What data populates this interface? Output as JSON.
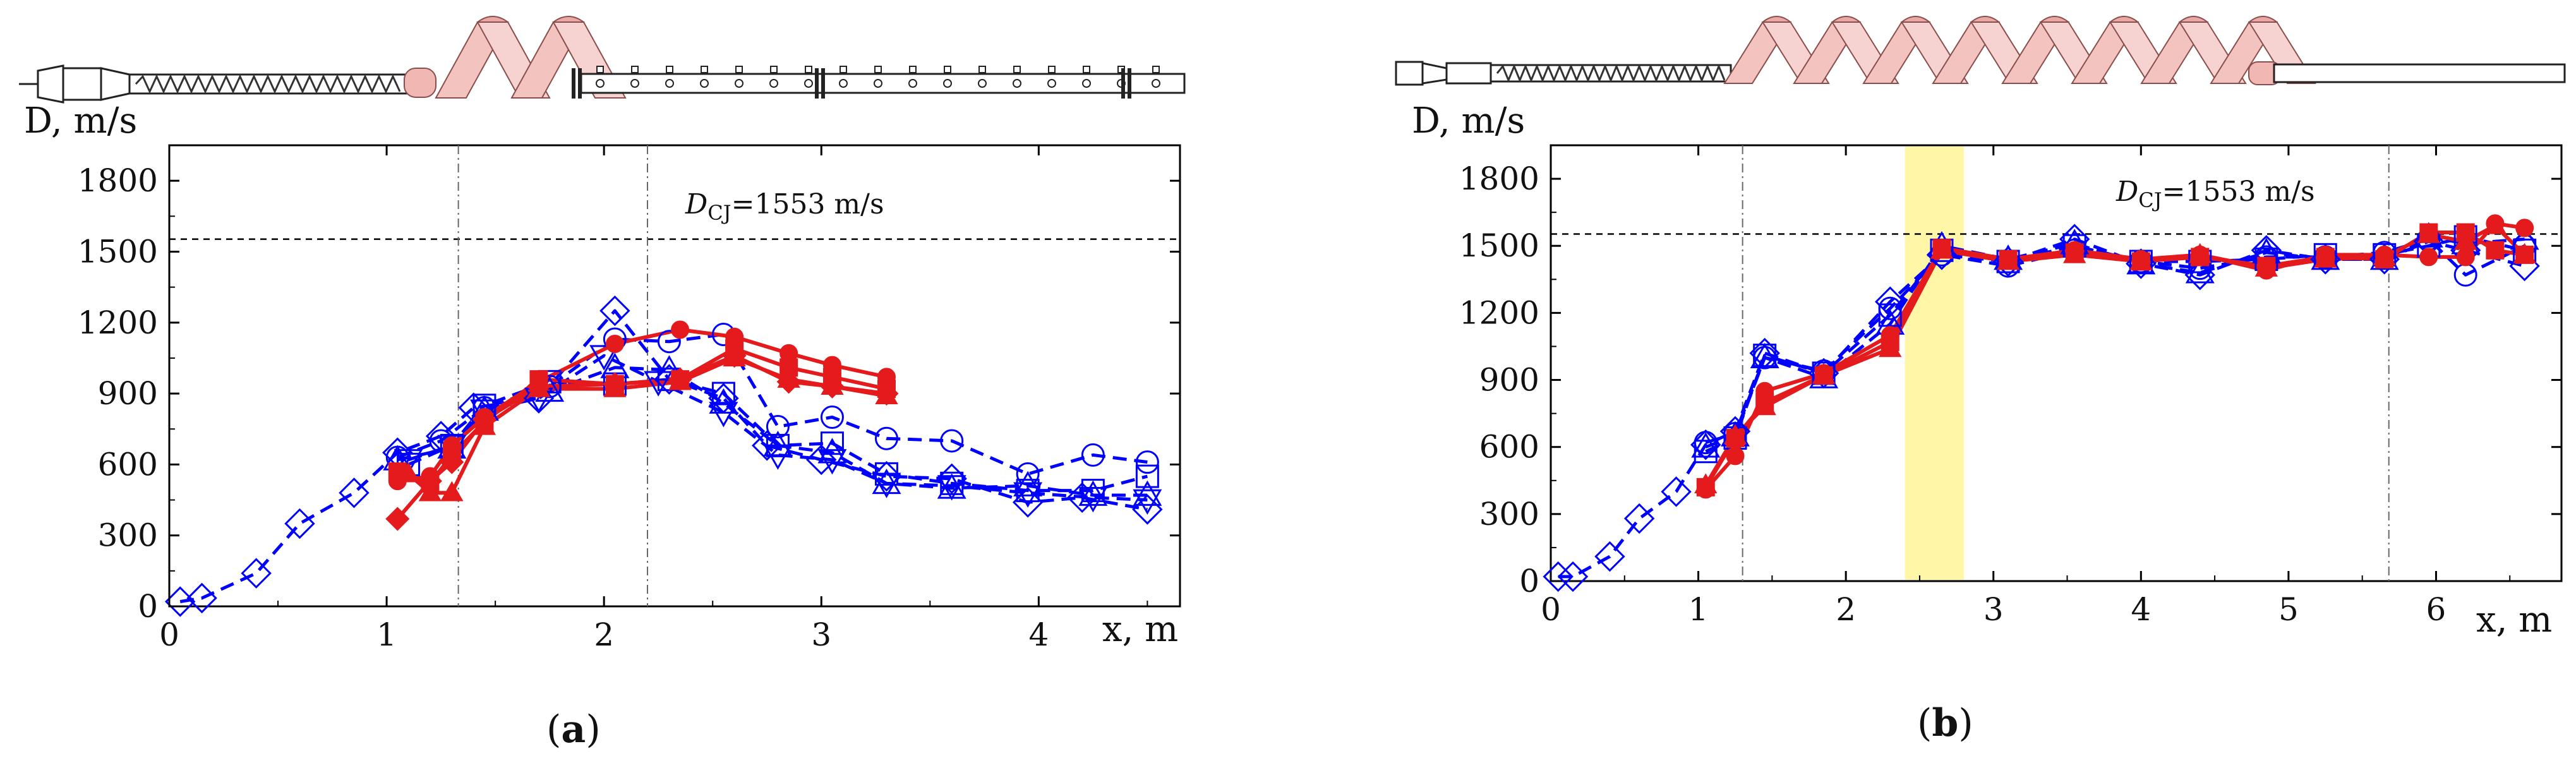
{
  "chart_data": [
    {
      "type": "line",
      "panel_label": "a",
      "ylabel": "D, m/s",
      "xlabel": "x, m",
      "xlim": [
        0,
        4.65
      ],
      "ylim": [
        0,
        1950
      ],
      "yticks": [
        0,
        300,
        600,
        900,
        1200,
        1500,
        1800
      ],
      "xticks": [
        0,
        1,
        2,
        3,
        4
      ],
      "reference_line": {
        "y": 1553,
        "label_main": "D",
        "label_sub": "CJ",
        "label_rest": "=1553 m/s"
      },
      "vertical_lines": [
        1.33,
        2.2
      ],
      "series": [
        {
          "color": "#0000ff",
          "dash": "dashed",
          "marker": "diamond",
          "x": [
            0.05,
            0.15,
            0.4,
            0.6,
            0.85,
            1.05,
            1.25,
            1.4,
            1.7,
            2.05,
            2.3,
            2.55,
            2.75,
            3.0,
            3.3,
            3.6,
            3.95,
            4.2,
            4.5
          ],
          "y": [
            20,
            35,
            140,
            350,
            480,
            650,
            720,
            840,
            880,
            1250,
            960,
            880,
            680,
            620,
            550,
            540,
            440,
            460,
            410
          ]
        },
        {
          "color": "#0000ff",
          "dash": "dashed",
          "marker": "circle",
          "x": [
            1.05,
            1.25,
            1.45,
            1.75,
            2.05,
            2.3,
            2.55,
            2.8,
            3.05,
            3.3,
            3.6,
            3.95,
            4.25,
            4.5
          ],
          "y": [
            630,
            700,
            840,
            930,
            1130,
            1120,
            1150,
            760,
            800,
            710,
            700,
            560,
            640,
            610
          ]
        },
        {
          "color": "#0000ff",
          "dash": "dashed",
          "marker": "square",
          "x": [
            1.1,
            1.3,
            1.45,
            1.75,
            2.05,
            2.3,
            2.55,
            2.8,
            3.05,
            3.3,
            3.6,
            3.95,
            4.25,
            4.5
          ],
          "y": [
            600,
            680,
            850,
            950,
            940,
            960,
            900,
            680,
            690,
            560,
            520,
            490,
            490,
            550
          ]
        },
        {
          "color": "#0000ff",
          "dash": "dashed",
          "marker": "triangle-up",
          "x": [
            1.05,
            1.3,
            1.45,
            1.75,
            2.05,
            2.3,
            2.55,
            2.8,
            3.05,
            3.3,
            3.6,
            3.95,
            4.25,
            4.5
          ],
          "y": [
            620,
            670,
            830,
            910,
            1010,
            1000,
            860,
            680,
            650,
            520,
            500,
            510,
            470,
            470
          ]
        },
        {
          "color": "#0000ff",
          "dash": "dashed",
          "marker": "triangle-down",
          "x": [
            1.1,
            1.3,
            1.45,
            1.7,
            2.0,
            2.25,
            2.55,
            2.8,
            3.05,
            3.3,
            3.6,
            3.95,
            4.25,
            4.5
          ],
          "y": [
            620,
            680,
            830,
            880,
            1060,
            950,
            820,
            640,
            620,
            520,
            510,
            480,
            460,
            450
          ]
        },
        {
          "color": "#e41a1c",
          "dash": "solid",
          "marker": "circle",
          "x": [
            1.05,
            1.2,
            1.3,
            1.45,
            1.7,
            2.05,
            2.35,
            2.6,
            2.85,
            3.05,
            3.3
          ],
          "y": [
            530,
            550,
            680,
            800,
            950,
            1110,
            1170,
            1140,
            1070,
            1020,
            970
          ]
        },
        {
          "color": "#e41a1c",
          "dash": "solid",
          "marker": "square",
          "x": [
            1.05,
            1.2,
            1.3,
            1.45,
            1.7,
            2.05,
            2.35,
            2.6,
            2.85,
            3.05,
            3.3
          ],
          "y": [
            570,
            520,
            640,
            780,
            960,
            940,
            960,
            1090,
            1010,
            970,
            920
          ]
        },
        {
          "color": "#e41a1c",
          "dash": "solid",
          "marker": "triangle-up",
          "x": [
            1.1,
            1.2,
            1.3,
            1.45,
            1.7,
            2.05,
            2.35,
            2.6,
            2.85,
            3.05,
            3.3
          ],
          "y": [
            560,
            480,
            480,
            760,
            920,
            920,
            950,
            1050,
            960,
            930,
            890
          ]
        },
        {
          "color": "#e41a1c",
          "dash": "solid",
          "marker": "diamond",
          "x": [
            1.05,
            1.2,
            1.3,
            1.45,
            1.7,
            2.05,
            2.35,
            2.6,
            2.85,
            3.05,
            3.3
          ],
          "y": [
            370,
            530,
            610,
            790,
            930,
            940,
            960,
            1060,
            950,
            930,
            900
          ]
        }
      ]
    },
    {
      "type": "line",
      "panel_label": "b",
      "ylabel": "D, m/s",
      "xlabel": "x, m",
      "xlim": [
        0,
        6.85
      ],
      "ylim": [
        0,
        1950
      ],
      "yticks": [
        0,
        300,
        600,
        900,
        1200,
        1500,
        1800
      ],
      "xticks": [
        0,
        1,
        2,
        3,
        4,
        5,
        6
      ],
      "reference_line": {
        "y": 1553,
        "label_main": "D",
        "label_sub": "CJ",
        "label_rest": "=1553 m/s"
      },
      "vertical_lines": [
        1.3,
        5.68
      ],
      "highlight_band": [
        2.4,
        2.8
      ],
      "series": [
        {
          "color": "#0000ff",
          "dash": "dashed",
          "marker": "diamond",
          "x": [
            0.05,
            0.15,
            0.4,
            0.6,
            0.85,
            1.05,
            1.25,
            1.45,
            1.85,
            2.3,
            2.65,
            3.1,
            3.55,
            4.0,
            4.4,
            4.85,
            5.25,
            5.65,
            5.95,
            6.2,
            6.6
          ],
          "y": [
            20,
            20,
            110,
            280,
            400,
            610,
            670,
            1020,
            930,
            1250,
            1460,
            1430,
            1530,
            1420,
            1370,
            1480,
            1440,
            1440,
            1520,
            1480,
            1410
          ]
        },
        {
          "color": "#0000ff",
          "dash": "dashed",
          "marker": "circle",
          "x": [
            1.05,
            1.25,
            1.45,
            1.85,
            2.3,
            2.65,
            3.1,
            3.55,
            4.0,
            4.4,
            4.85,
            5.25,
            5.65,
            5.95,
            6.2,
            6.6
          ],
          "y": [
            620,
            660,
            1000,
            940,
            1220,
            1460,
            1410,
            1480,
            1430,
            1400,
            1450,
            1450,
            1470,
            1530,
            1370,
            1500
          ]
        },
        {
          "color": "#0000ff",
          "dash": "dashed",
          "marker": "square",
          "x": [
            1.05,
            1.25,
            1.45,
            1.85,
            2.3,
            2.65,
            3.1,
            3.55,
            4.0,
            4.4,
            4.85,
            5.25,
            5.65,
            5.95,
            6.2,
            6.6
          ],
          "y": [
            580,
            640,
            1010,
            930,
            1190,
            1480,
            1430,
            1500,
            1430,
            1430,
            1440,
            1460,
            1460,
            1500,
            1540,
            1480
          ]
        },
        {
          "color": "#0000ff",
          "dash": "dashed",
          "marker": "triangle-up",
          "x": [
            1.05,
            1.25,
            1.45,
            1.85,
            2.3,
            2.65,
            3.1,
            3.55,
            4.0,
            4.4,
            4.85,
            5.25,
            5.65,
            5.95,
            6.2,
            6.6
          ],
          "y": [
            600,
            650,
            1000,
            910,
            1150,
            1500,
            1440,
            1510,
            1420,
            1380,
            1470,
            1440,
            1440,
            1540,
            1510,
            1530
          ]
        },
        {
          "color": "#e41a1c",
          "dash": "solid",
          "marker": "circle",
          "x": [
            1.05,
            1.25,
            1.45,
            1.85,
            2.3,
            2.65,
            3.1,
            3.55,
            4.0,
            4.4,
            4.85,
            5.25,
            5.65,
            5.95,
            6.2,
            6.4,
            6.6
          ],
          "y": [
            410,
            560,
            850,
            930,
            1100,
            1490,
            1440,
            1480,
            1440,
            1460,
            1390,
            1460,
            1460,
            1450,
            1450,
            1600,
            1580
          ]
        },
        {
          "color": "#e41a1c",
          "dash": "solid",
          "marker": "square",
          "x": [
            1.05,
            1.25,
            1.45,
            1.85,
            2.3,
            2.65,
            3.1,
            3.55,
            4.0,
            4.4,
            4.85,
            5.25,
            5.65,
            5.95,
            6.2,
            6.4,
            6.6
          ],
          "y": [
            420,
            640,
            800,
            920,
            1070,
            1490,
            1440,
            1470,
            1430,
            1450,
            1410,
            1450,
            1440,
            1560,
            1560,
            1480,
            1460
          ]
        },
        {
          "color": "#e41a1c",
          "dash": "solid",
          "marker": "triangle-up",
          "x": [
            1.05,
            1.25,
            1.45,
            1.85,
            2.3,
            2.65,
            3.1,
            3.55,
            4.0,
            4.4,
            4.85,
            5.25,
            5.65,
            5.95,
            6.2,
            6.4,
            6.6
          ],
          "y": [
            430,
            650,
            780,
            920,
            1040,
            1480,
            1430,
            1460,
            1430,
            1460,
            1400,
            1440,
            1450,
            1550,
            1520,
            1590,
            1460
          ]
        }
      ]
    }
  ]
}
